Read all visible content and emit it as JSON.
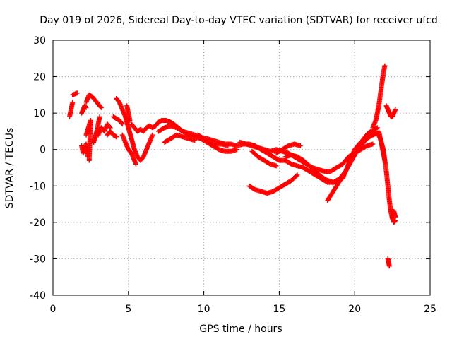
{
  "chart_data": {
    "type": "scatter",
    "title": "Day 019 of 2026, Sidereal Day-to-day VTEC variation (SDTVAR) for receiver ufcd",
    "xlabel": "GPS time / hours",
    "ylabel": "SDTVAR / TECUs",
    "xlim": [
      0,
      25
    ],
    "ylim": [
      -40,
      30
    ],
    "xticks": [
      0,
      5,
      10,
      15,
      20,
      25
    ],
    "yticks": [
      -40,
      -30,
      -20,
      -10,
      0,
      10,
      20,
      30
    ],
    "grid": true,
    "marker": "plus",
    "color": "#ff0000",
    "series": [
      {
        "name": "sdtvar",
        "segments": [
          [
            [
              1.1,
              9
            ],
            [
              1.2,
              11
            ],
            [
              1.3,
              13
            ]
          ],
          [
            [
              1.3,
              15
            ],
            [
              1.6,
              15.5
            ]
          ],
          [
            [
              1.9,
              1
            ],
            [
              2.0,
              -1
            ],
            [
              2.1,
              0
            ],
            [
              2.2,
              1.5
            ],
            [
              2.3,
              -2
            ]
          ],
          [
            [
              1.9,
              10
            ],
            [
              2.0,
              11
            ],
            [
              2.1,
              12
            ],
            [
              2.2,
              11.5
            ]
          ],
          [
            [
              2.2,
              13
            ],
            [
              2.4,
              15
            ],
            [
              2.6,
              14.5
            ],
            [
              2.8,
              13.5
            ],
            [
              3.0,
              12.5
            ],
            [
              3.2,
              11.5
            ]
          ],
          [
            [
              2.2,
              4
            ],
            [
              2.35,
              6
            ],
            [
              2.5,
              8
            ],
            [
              2.4,
              -3
            ]
          ],
          [
            [
              2.7,
              2
            ],
            [
              2.9,
              5
            ],
            [
              3.0,
              7
            ],
            [
              3.1,
              9
            ]
          ],
          [
            [
              3.0,
              4
            ],
            [
              3.2,
              6
            ],
            [
              3.4,
              5
            ],
            [
              3.6,
              7
            ],
            [
              3.8,
              6
            ]
          ],
          [
            [
              3.6,
              4
            ],
            [
              3.8,
              5
            ],
            [
              4.0,
              4
            ],
            [
              4.2,
              3.5
            ]
          ],
          [
            [
              4.0,
              9
            ],
            [
              4.2,
              8.5
            ],
            [
              4.4,
              8
            ],
            [
              4.6,
              7
            ]
          ],
          [
            [
              4.2,
              14
            ],
            [
              4.4,
              13
            ],
            [
              4.6,
              11
            ],
            [
              4.8,
              9
            ],
            [
              5.0,
              6
            ],
            [
              5.2,
              3
            ],
            [
              5.4,
              0
            ],
            [
              5.6,
              -2
            ],
            [
              5.8,
              -3
            ],
            [
              6.0,
              -2
            ],
            [
              6.2,
              0
            ],
            [
              6.4,
              2
            ],
            [
              6.6,
              4
            ]
          ],
          [
            [
              4.6,
              4
            ],
            [
              4.8,
              2
            ],
            [
              5.0,
              0
            ],
            [
              5.2,
              -1
            ],
            [
              5.5,
              -4
            ]
          ],
          [
            [
              4.9,
              12
            ],
            [
              5.0,
              10
            ],
            [
              5.1,
              8
            ]
          ],
          [
            [
              5.2,
              7
            ],
            [
              5.4,
              6
            ],
            [
              5.6,
              5
            ],
            [
              5.8,
              5.5
            ],
            [
              6.0,
              5
            ],
            [
              6.2,
              6
            ],
            [
              6.4,
              6.5
            ],
            [
              6.6,
              6
            ],
            [
              6.8,
              6.5
            ],
            [
              7.0,
              7.5
            ],
            [
              7.2,
              8
            ],
            [
              7.5,
              8
            ],
            [
              7.8,
              7.5
            ],
            [
              8.0,
              7
            ],
            [
              8.3,
              6
            ],
            [
              8.6,
              5
            ],
            [
              9.0,
              4
            ],
            [
              9.4,
              3.5
            ],
            [
              9.8,
              3
            ],
            [
              10.2,
              3
            ],
            [
              10.6,
              2.5
            ],
            [
              11.0,
              2
            ],
            [
              11.4,
              1.5
            ],
            [
              11.8,
              1.5
            ],
            [
              12.2,
              1
            ],
            [
              12.6,
              1.5
            ],
            [
              13.0,
              1.5
            ],
            [
              13.4,
              1
            ],
            [
              13.8,
              0
            ],
            [
              14.2,
              -1
            ],
            [
              14.6,
              -2
            ],
            [
              15.0,
              -3
            ],
            [
              15.4,
              -3
            ],
            [
              15.8,
              -4
            ],
            [
              16.2,
              -4.5
            ],
            [
              16.6,
              -5
            ],
            [
              17.0,
              -6
            ],
            [
              17.4,
              -7
            ],
            [
              17.8,
              -8
            ],
            [
              18.2,
              -9
            ],
            [
              18.6,
              -9
            ],
            [
              19.0,
              -8
            ],
            [
              19.4,
              -6
            ],
            [
              19.8,
              -3
            ],
            [
              20.2,
              0
            ],
            [
              20.6,
              2
            ],
            [
              21.0,
              4
            ],
            [
              21.3,
              5.5
            ],
            [
              21.5,
              6
            ]
          ],
          [
            [
              7.0,
              5
            ],
            [
              7.4,
              6
            ],
            [
              7.8,
              6.5
            ],
            [
              8.2,
              6
            ],
            [
              8.6,
              5
            ],
            [
              9.0,
              4.5
            ],
            [
              9.4,
              4
            ],
            [
              9.8,
              3
            ],
            [
              10.2,
              2
            ],
            [
              10.6,
              1
            ],
            [
              11.0,
              0
            ],
            [
              11.4,
              -0.5
            ],
            [
              11.8,
              -0.5
            ],
            [
              12.2,
              0
            ]
          ],
          [
            [
              7.4,
              2
            ],
            [
              7.8,
              3
            ],
            [
              8.2,
              4
            ],
            [
              8.6,
              3.5
            ],
            [
              9.0,
              3
            ],
            [
              9.4,
              2.5
            ]
          ],
          [
            [
              9.6,
              4
            ],
            [
              10.0,
              3
            ],
            [
              10.4,
              2
            ],
            [
              10.8,
              1.5
            ],
            [
              11.2,
              1.5
            ],
            [
              11.6,
              1
            ]
          ],
          [
            [
              12.4,
              2
            ],
            [
              12.8,
              1.5
            ],
            [
              13.2,
              1
            ],
            [
              13.6,
              0.5
            ],
            [
              14.0,
              0
            ],
            [
              14.4,
              -0.5
            ],
            [
              14.8,
              0
            ],
            [
              15.2,
              -0.5
            ],
            [
              15.6,
              -1
            ],
            [
              16.0,
              -2
            ],
            [
              16.4,
              -3
            ],
            [
              16.8,
              -4
            ],
            [
              17.2,
              -5
            ],
            [
              17.6,
              -5.5
            ],
            [
              18.0,
              -6
            ],
            [
              18.4,
              -6
            ],
            [
              18.8,
              -5
            ],
            [
              19.2,
              -4
            ],
            [
              19.6,
              -2
            ],
            [
              20.0,
              -1
            ],
            [
              20.4,
              0
            ],
            [
              20.8,
              1
            ],
            [
              21.2,
              1.5
            ]
          ],
          [
            [
              13.2,
              -0.5
            ],
            [
              13.6,
              -2
            ],
            [
              14.0,
              -3
            ],
            [
              14.4,
              -4
            ],
            [
              14.8,
              -4.5
            ]
          ],
          [
            [
              13.0,
              -10
            ],
            [
              13.4,
              -11
            ],
            [
              13.8,
              -11.5
            ],
            [
              14.2,
              -12
            ],
            [
              14.6,
              -11.5
            ],
            [
              15.0,
              -10.5
            ],
            [
              15.4,
              -9.5
            ],
            [
              15.8,
              -8.5
            ],
            [
              16.2,
              -7
            ]
          ],
          [
            [
              14.8,
              -1
            ],
            [
              15.2,
              0
            ],
            [
              15.6,
              1
            ],
            [
              16.0,
              1.5
            ],
            [
              16.4,
              1
            ]
          ],
          [
            [
              15.4,
              -2
            ],
            [
              15.8,
              -1.5
            ],
            [
              16.2,
              -2
            ],
            [
              16.6,
              -3
            ],
            [
              17.0,
              -4.5
            ],
            [
              17.4,
              -6
            ],
            [
              17.8,
              -7.5
            ],
            [
              18.2,
              -8.5
            ],
            [
              18.6,
              -9
            ],
            [
              19.0,
              -8.5
            ]
          ],
          [
            [
              18.2,
              -14
            ],
            [
              18.5,
              -12
            ],
            [
              18.8,
              -10
            ],
            [
              19.1,
              -8
            ],
            [
              19.4,
              -6
            ],
            [
              19.7,
              -3
            ],
            [
              20.0,
              -1
            ],
            [
              20.3,
              1
            ],
            [
              20.6,
              3
            ],
            [
              20.9,
              4.5
            ],
            [
              21.1,
              5
            ]
          ],
          [
            [
              19.2,
              -8
            ],
            [
              19.6,
              -4
            ],
            [
              20.0,
              0
            ],
            [
              20.4,
              2
            ],
            [
              20.8,
              3
            ],
            [
              21.2,
              4
            ],
            [
              21.5,
              4.5
            ],
            [
              21.7,
              3
            ],
            [
              21.9,
              0
            ],
            [
              22.0,
              -3
            ],
            [
              22.1,
              -6
            ],
            [
              22.2,
              -10
            ],
            [
              22.3,
              -14
            ],
            [
              22.4,
              -17
            ],
            [
              22.5,
              -19
            ],
            [
              22.6,
              -20
            ],
            [
              22.7,
              -19.5
            ]
          ],
          [
            [
              21.2,
              6
            ],
            [
              21.4,
              8
            ],
            [
              21.5,
              10
            ],
            [
              21.6,
              12
            ],
            [
              21.7,
              15
            ],
            [
              21.8,
              18
            ],
            [
              21.9,
              21
            ],
            [
              22.0,
              23
            ]
          ],
          [
            [
              21.6,
              5
            ],
            [
              21.7,
              3
            ],
            [
              21.8,
              1
            ],
            [
              21.9,
              -1
            ],
            [
              22.0,
              -3
            ]
          ],
          [
            [
              22.1,
              12
            ],
            [
              22.2,
              11
            ],
            [
              22.3,
              10
            ],
            [
              22.4,
              9
            ],
            [
              22.5,
              9
            ],
            [
              22.6,
              10
            ],
            [
              22.7,
              11
            ]
          ],
          [
            [
              22.2,
              -30
            ],
            [
              22.25,
              -31
            ],
            [
              22.3,
              -32
            ]
          ],
          [
            [
              22.6,
              -17
            ],
            [
              22.7,
              -18.5
            ]
          ]
        ]
      }
    ]
  }
}
